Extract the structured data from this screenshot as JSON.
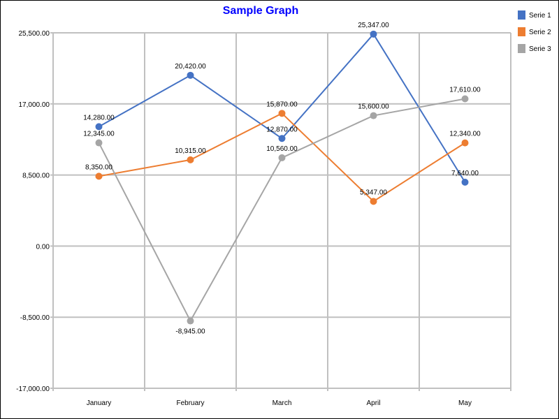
{
  "chart_data": {
    "type": "line",
    "title": "Sample Graph",
    "categories": [
      "January",
      "February",
      "March",
      "April",
      "May"
    ],
    "series": [
      {
        "name": "Serie 1",
        "color": "#4472c4",
        "values": [
          14280,
          20420,
          12870,
          25347,
          7640
        ]
      },
      {
        "name": "Serie 2",
        "color": "#ed7d31",
        "values": [
          8350,
          10315,
          15870,
          5347,
          12340
        ]
      },
      {
        "name": "Serie 3",
        "color": "#a5a5a5",
        "values": [
          12345,
          -8945,
          10560,
          15600,
          17610
        ]
      }
    ],
    "yticks": [
      25500,
      17000,
      8500,
      0,
      -8500,
      -17000
    ],
    "ylim": [
      -17000,
      25500
    ],
    "grid": true,
    "legend": "top-right",
    "data_labels": true
  }
}
